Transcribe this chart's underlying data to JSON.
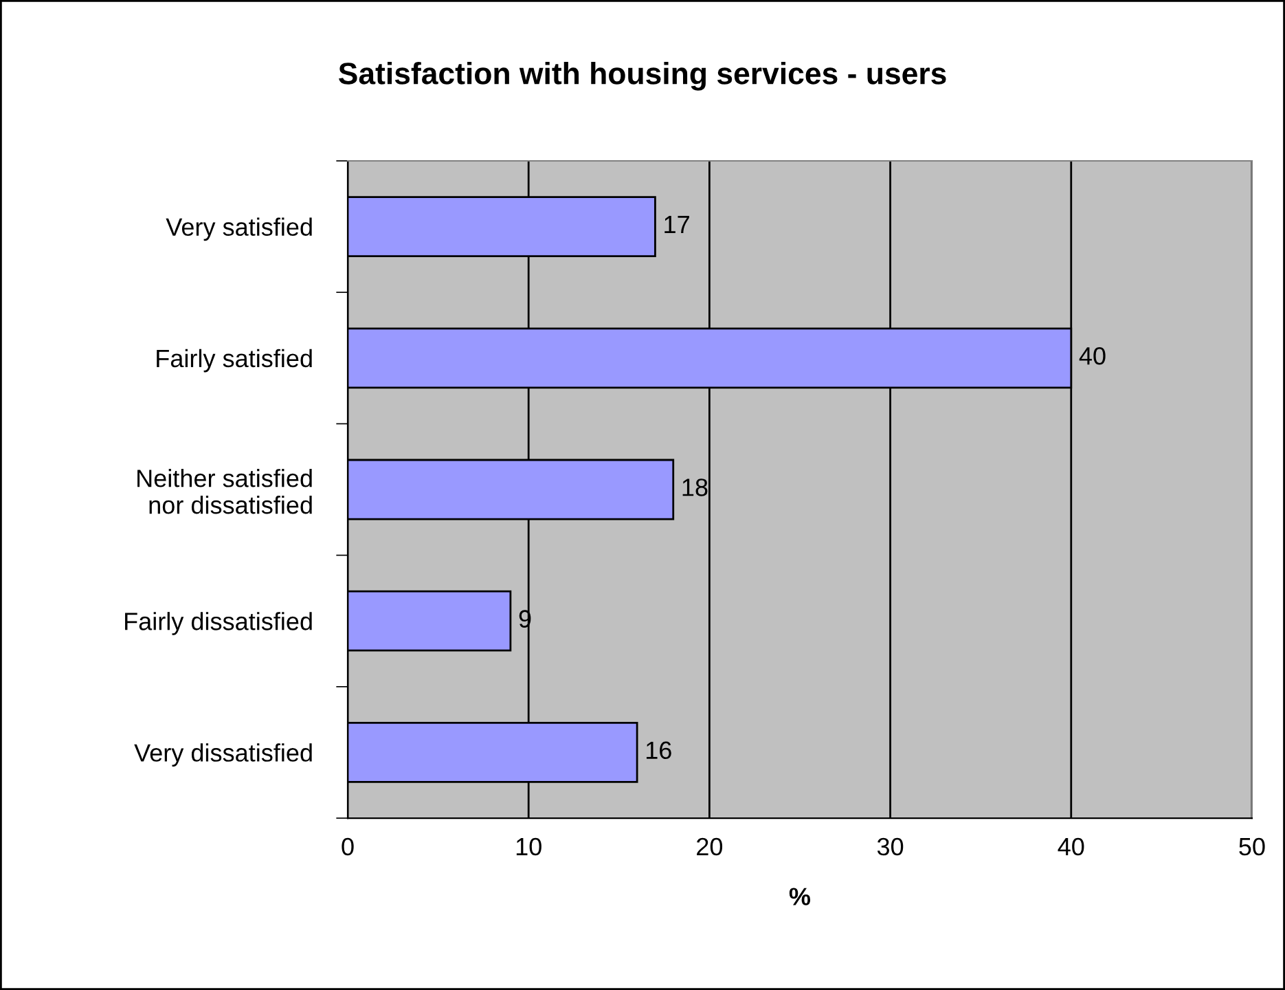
{
  "chart_data": {
    "type": "bar",
    "orientation": "horizontal",
    "title": "Satisfaction with housing services - users",
    "xlabel": "%",
    "categories": [
      "Very satisfied",
      "Fairly satisfied",
      "Neither satisfied\nnor dissatisfied",
      "Fairly dissatisfied",
      "Very dissatisfied"
    ],
    "values": [
      17,
      40,
      18,
      9,
      16
    ],
    "color": "#9999ff",
    "xlim": [
      0,
      50
    ],
    "xticks": [
      0,
      10,
      20,
      30,
      40,
      50
    ],
    "grid": "x",
    "data_labels": true
  }
}
